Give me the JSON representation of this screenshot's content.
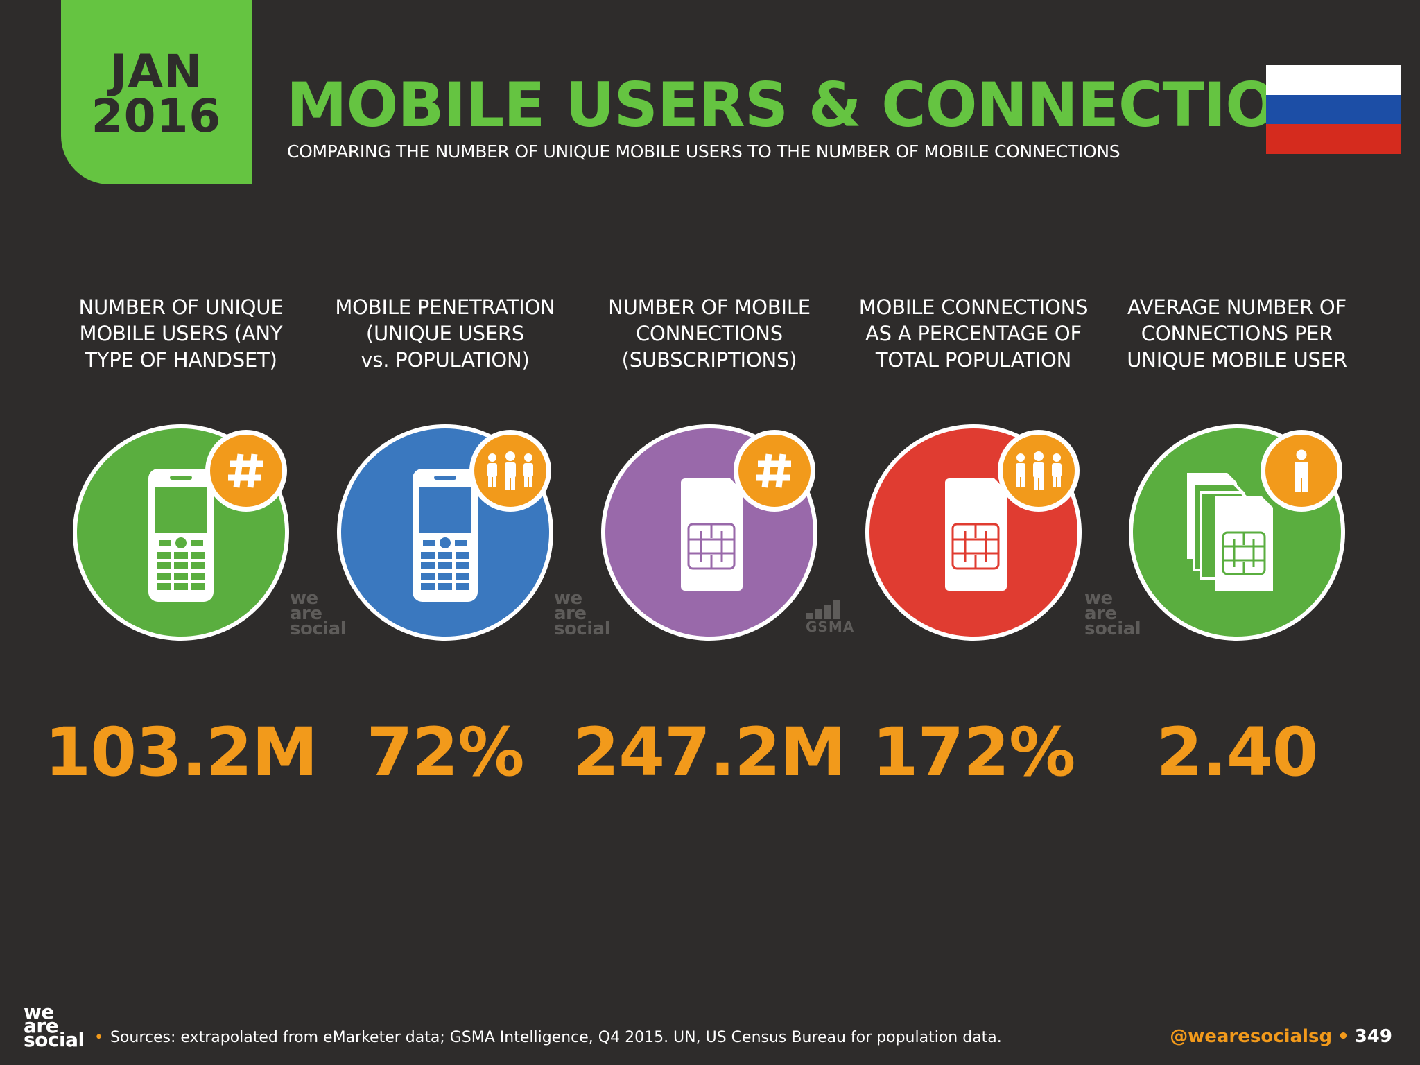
{
  "header": {
    "date_month": "JAN",
    "date_year": "2016",
    "title": "MOBILE USERS & CONNECTIONS",
    "subtitle": "COMPARING THE NUMBER OF UNIQUE MOBILE USERS TO THE NUMBER OF MOBILE CONNECTIONS",
    "flag_colors": [
      "#ffffff",
      "#1c4ea6",
      "#d52b1e"
    ]
  },
  "stats": [
    {
      "label": [
        "NUMBER OF UNIQUE",
        "MOBILE USERS (ANY",
        "TYPE OF HANDSET)"
      ],
      "value": "103.2M",
      "circle_color": "#5aae3f",
      "icon": "phone-icon",
      "badge_icon": "hash-icon",
      "source": "we-are-social"
    },
    {
      "label": [
        "MOBILE PENETRATION",
        "(UNIQUE USERS",
        "vs. POPULATION)"
      ],
      "value": "72%",
      "circle_color": "#3a78bf",
      "icon": "phone-icon",
      "badge_icon": "people-icon",
      "source": "we-are-social"
    },
    {
      "label": [
        "NUMBER OF MOBILE",
        "CONNECTIONS",
        "(SUBSCRIPTIONS)"
      ],
      "value": "247.2M",
      "circle_color": "#9969aa",
      "icon": "sim-card-icon",
      "badge_icon": "hash-icon",
      "source": "gsma"
    },
    {
      "label": [
        "MOBILE CONNECTIONS",
        "AS A PERCENTAGE OF",
        "TOTAL POPULATION"
      ],
      "value": "172%",
      "circle_color": "#e03c31",
      "icon": "sim-card-icon",
      "badge_icon": "people-icon",
      "source": "we-are-social"
    },
    {
      "label": [
        "AVERAGE NUMBER OF",
        "CONNECTIONS PER",
        "UNIQUE MOBILE USER"
      ],
      "value": "2.40",
      "circle_color": "#5aae3f",
      "icon": "sim-cards-stack-icon",
      "badge_icon": "person-icon",
      "source": ""
    }
  ],
  "watermarks": {
    "we_are_social": [
      "we",
      "are",
      "social"
    ],
    "gsma": "GSMA"
  },
  "footer": {
    "logo": [
      "we",
      "are",
      "social"
    ],
    "sources": "Sources: extrapolated from eMarketer data; GSMA Intelligence, Q4 2015. UN, US Census Bureau for population data.",
    "handle": "@wearesocialsg",
    "page_number": "349"
  }
}
